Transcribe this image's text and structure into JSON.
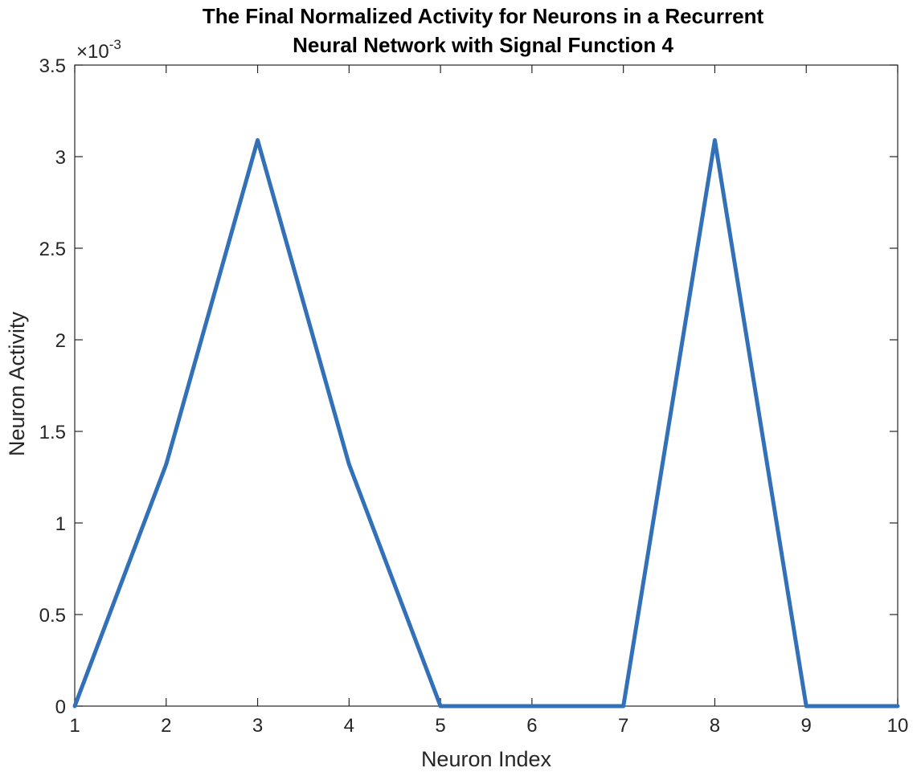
{
  "chart_data": {
    "type": "line",
    "title_lines": [
      "The Final Normalized Activity for Neurons in a Recurrent",
      "Neural Network with Signal Function 4"
    ],
    "xlabel": "Neuron Index",
    "ylabel": "Neuron Activity",
    "y_exponent_base": "×10",
    "y_exponent_power": "-3",
    "xlim": [
      1,
      10
    ],
    "ylim": [
      0,
      0.0035
    ],
    "xticks": [
      1,
      2,
      3,
      4,
      5,
      6,
      7,
      8,
      9,
      10
    ],
    "xtick_labels": [
      "1",
      "2",
      "3",
      "4",
      "5",
      "6",
      "7",
      "8",
      "9",
      "10"
    ],
    "yticks": [
      0,
      0.0005,
      0.001,
      0.0015,
      0.002,
      0.0025,
      0.003,
      0.0035
    ],
    "ytick_labels": [
      "0",
      "0.5",
      "1",
      "1.5",
      "2",
      "2.5",
      "3",
      "3.5"
    ],
    "grid": false,
    "series": [
      {
        "color": "#3270B8",
        "x": [
          1,
          2,
          3,
          4,
          5,
          6,
          7,
          8,
          9,
          10
        ],
        "y": [
          0,
          0.00132,
          0.00309,
          0.00132,
          0,
          0,
          0,
          0.00309,
          0,
          0
        ]
      }
    ]
  }
}
